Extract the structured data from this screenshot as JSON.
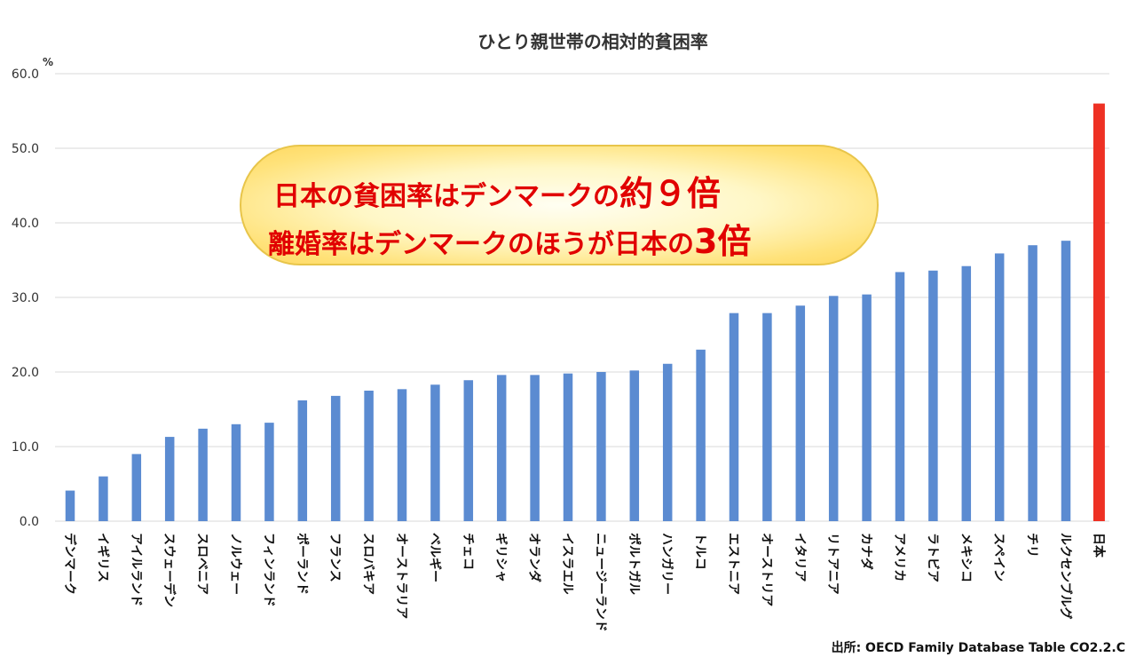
{
  "chart_data": {
    "type": "bar",
    "title": "ひとり親世帯の相対的貧困率",
    "unit": "%",
    "ylim": [
      0,
      60
    ],
    "yticks": [
      "0.0",
      "10.0",
      "20.0",
      "30.0",
      "40.0",
      "50.0",
      "60.0"
    ],
    "grid": true,
    "categories": [
      "デンマーク",
      "イギリス",
      "アイルランド",
      "スウェーデン",
      "スロベニア",
      "ノルウェー",
      "フィンランド",
      "ポーランド",
      "フランス",
      "スロバキア",
      "オーストラリア",
      "ベルギー",
      "チェコ",
      "ギリシャ",
      "オランダ",
      "イスラエル",
      "ニュージーランド",
      "ポルトガル",
      "ハンガリー",
      "トルコ",
      "エストニア",
      "オーストリア",
      "イタリア",
      "リトアニア",
      "カナダ",
      "アメリカ",
      "ラトビア",
      "メキシコ",
      "スペイン",
      "チリ",
      "ルクセンブルグ",
      "日本"
    ],
    "values": [
      4.1,
      6.0,
      9.0,
      11.3,
      12.4,
      13.0,
      13.2,
      16.2,
      16.8,
      17.5,
      17.7,
      18.3,
      18.9,
      19.6,
      19.6,
      19.8,
      20.0,
      20.2,
      21.1,
      23.0,
      27.9,
      27.9,
      28.9,
      30.2,
      30.4,
      33.4,
      33.6,
      34.2,
      35.9,
      37.0,
      37.6,
      56.0
    ],
    "colors": {
      "default": "#5b8bd1",
      "highlight": "#ee3124",
      "highlight_category": "日本"
    },
    "source": "出所: OECD Family Database Table CO2.2.C"
  },
  "callout": {
    "line1_text": "日本の貧困率はデンマークの",
    "line1_big": "約９倍",
    "line2_text": "離婚率はデンマークのほうが日本の",
    "line2_big": "3倍"
  }
}
